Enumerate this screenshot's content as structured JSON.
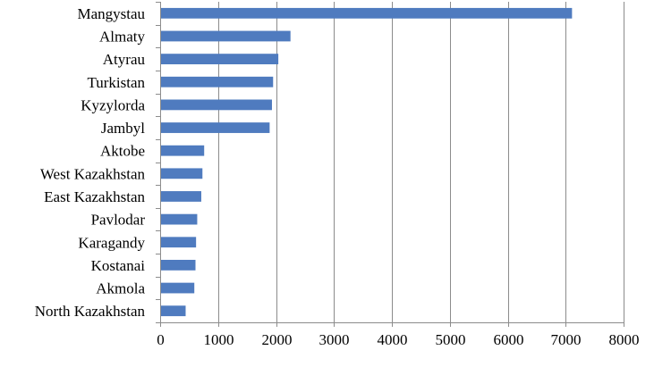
{
  "chart_data": {
    "type": "bar",
    "orientation": "horizontal",
    "categories": [
      "Mangystau",
      "Almaty",
      "Atyrau",
      "Turkistan",
      "Kyzylorda",
      "Jambyl",
      "Aktobe",
      "West Kazakhstan",
      "East Kazakhstan",
      "Pavlodar",
      "Karagandy",
      "Kostanai",
      "Akmola",
      "North Kazakhstan"
    ],
    "values": [
      7110,
      2250,
      2040,
      1950,
      1930,
      1890,
      760,
      730,
      710,
      640,
      620,
      610,
      590,
      440
    ],
    "xlim": [
      0,
      8000
    ],
    "xticks": [
      "0",
      "1000",
      "2000",
      "3000",
      "4000",
      "5000",
      "6000",
      "7000",
      "8000"
    ],
    "grid": "vertical",
    "legend": "none",
    "title": "",
    "xlabel": "",
    "ylabel": "",
    "bar_color": "#4f7bbf"
  }
}
